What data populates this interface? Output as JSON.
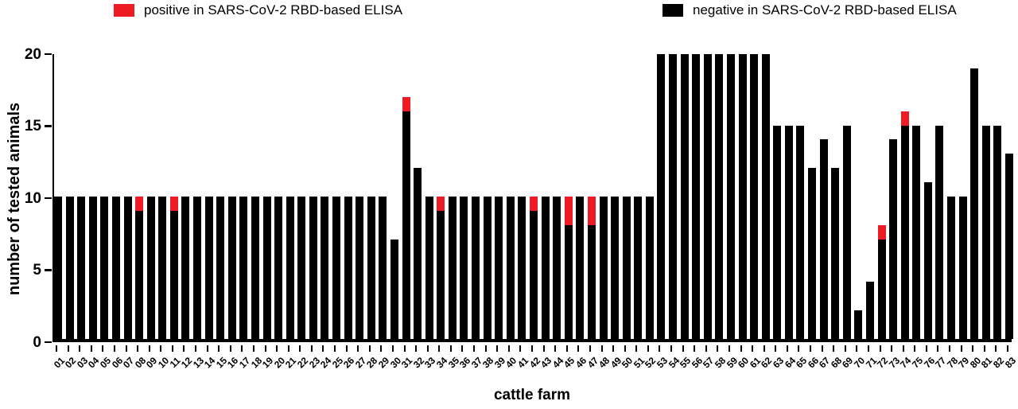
{
  "legend": {
    "positive_label": "positive in SARS-CoV-2 RBD-based ELISA",
    "negative_label": "negative in SARS-CoV-2 RBD-based ELISA",
    "positive_color": "#ed1c24",
    "negative_color": "#000000"
  },
  "chart_data": {
    "type": "bar",
    "stacked": true,
    "xlabel": "cattle farm",
    "ylabel": "number of tested animals",
    "ylim": [
      0,
      20
    ],
    "yticks": [
      0,
      5,
      10,
      15,
      20
    ],
    "grid": false,
    "legend_position": "top",
    "categories": [
      "01",
      "02",
      "03",
      "04",
      "05",
      "06",
      "07",
      "08",
      "09",
      "10",
      "11",
      "12",
      "13",
      "14",
      "15",
      "16",
      "17",
      "18",
      "19",
      "20",
      "21",
      "22",
      "23",
      "24",
      "25",
      "26",
      "27",
      "28",
      "29",
      "30",
      "31",
      "32",
      "33",
      "34",
      "35",
      "36",
      "37",
      "38",
      "39",
      "40",
      "41",
      "42",
      "43",
      "44",
      "45",
      "46",
      "47",
      "48",
      "49",
      "50",
      "51",
      "52",
      "53",
      "54",
      "55",
      "56",
      "57",
      "58",
      "59",
      "60",
      "61",
      "62",
      "63",
      "64",
      "65",
      "66",
      "67",
      "68",
      "69",
      "70",
      "71",
      "72",
      "73",
      "74",
      "75",
      "76",
      "77",
      "78",
      "79",
      "80",
      "81",
      "82",
      "83"
    ],
    "series": [
      {
        "name": "negative in SARS-CoV-2 RBD-based ELISA",
        "color": "#000000",
        "values": [
          10,
          10,
          10,
          10,
          10,
          10,
          10,
          9,
          10,
          10,
          9,
          10,
          10,
          10,
          10,
          10,
          10,
          10,
          10,
          10,
          10,
          10,
          10,
          10,
          10,
          10,
          10,
          10,
          10,
          7,
          16,
          12,
          10,
          9,
          10,
          10,
          10,
          10,
          10,
          10,
          10,
          9,
          10,
          10,
          8,
          10,
          8,
          10,
          10,
          10,
          10,
          10,
          20,
          20,
          20,
          20,
          20,
          20,
          20,
          20,
          20,
          20,
          15,
          15,
          15,
          12,
          14,
          12,
          15,
          2,
          4,
          7,
          14,
          15,
          15,
          11,
          15,
          10,
          10,
          19,
          15,
          15,
          13
        ]
      },
      {
        "name": "positive in SARS-CoV-2 RBD-based ELISA",
        "color": "#ed1c24",
        "values": [
          0,
          0,
          0,
          0,
          0,
          0,
          0,
          1,
          0,
          0,
          1,
          0,
          0,
          0,
          0,
          0,
          0,
          0,
          0,
          0,
          0,
          0,
          0,
          0,
          0,
          0,
          0,
          0,
          0,
          0,
          1,
          0,
          0,
          1,
          0,
          0,
          0,
          0,
          0,
          0,
          0,
          1,
          0,
          0,
          2,
          0,
          2,
          0,
          0,
          0,
          0,
          0,
          0,
          0,
          0,
          0,
          0,
          0,
          0,
          0,
          0,
          0,
          0,
          0,
          0,
          0,
          0,
          0,
          0,
          0,
          0,
          1,
          0,
          1,
          0,
          0,
          0,
          0,
          0,
          0,
          0,
          0,
          0
        ]
      }
    ],
    "totals": [
      10,
      10,
      10,
      10,
      10,
      10,
      10,
      10,
      10,
      10,
      10,
      10,
      10,
      10,
      10,
      10,
      10,
      10,
      10,
      10,
      10,
      10,
      10,
      10,
      10,
      10,
      10,
      10,
      10,
      7,
      17,
      12,
      10,
      10,
      10,
      10,
      10,
      10,
      10,
      10,
      10,
      10,
      10,
      10,
      10,
      10,
      10,
      10,
      10,
      10,
      10,
      10,
      20,
      20,
      20,
      20,
      20,
      20,
      20,
      20,
      20,
      20,
      15,
      15,
      15,
      12,
      14,
      12,
      15,
      2,
      4,
      8,
      14,
      16,
      15,
      11,
      15,
      10,
      10,
      19,
      15,
      15,
      13
    ]
  }
}
